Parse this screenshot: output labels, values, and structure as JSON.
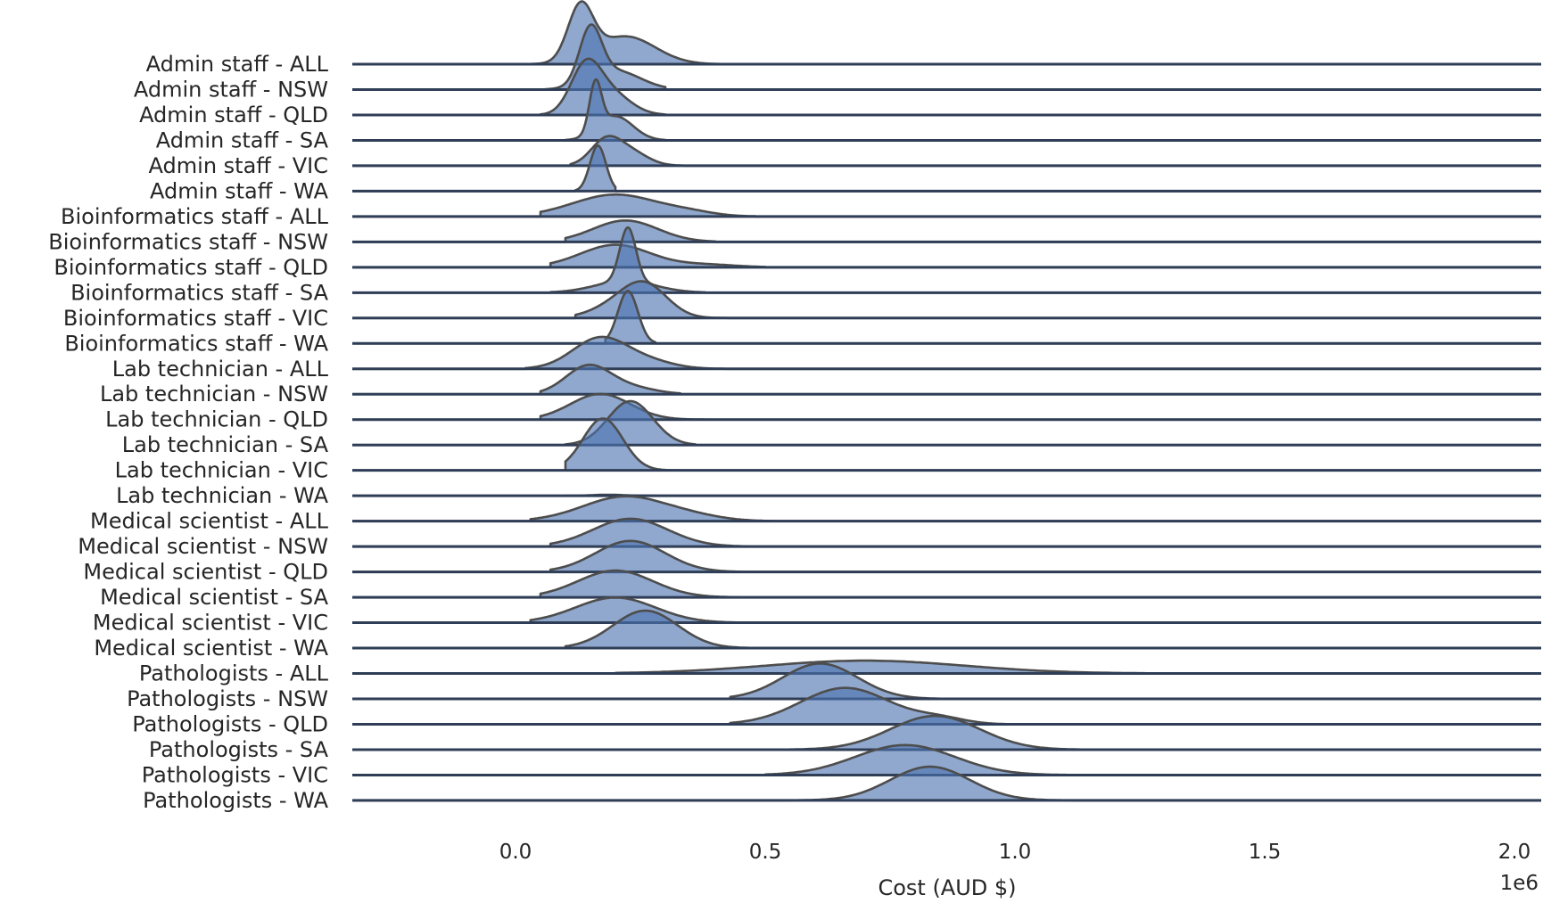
{
  "chart_data": {
    "type": "ridgeline",
    "xlabel": "Cost (AUD $)",
    "x_offset_label": "1e6",
    "x_ticks": [
      {
        "value": 0.0,
        "label": "0.0"
      },
      {
        "value": 0.5,
        "label": "0.5"
      },
      {
        "value": 1.0,
        "label": "1.0"
      },
      {
        "value": 1.5,
        "label": "1.5"
      },
      {
        "value": 2.0,
        "label": "2.0"
      }
    ],
    "xlim": [
      -0.33,
      2.05
    ],
    "x_scale": "1e6",
    "colors": {
      "fill": "#4c72b0",
      "outline": "#4d4d4d",
      "baseline": "#2f3e56"
    },
    "series": [
      {
        "name": "Admin staff - ALL",
        "peaks": [
          {
            "mu": 0.13,
            "sigma": 0.025,
            "h": 1.0
          },
          {
            "mu": 0.22,
            "sigma": 0.06,
            "h": 0.52
          }
        ],
        "start": -0.02,
        "end": 0.42
      },
      {
        "name": "Admin staff - NSW",
        "peaks": [
          {
            "mu": 0.15,
            "sigma": 0.022,
            "h": 1.0
          },
          {
            "mu": 0.2,
            "sigma": 0.05,
            "h": 0.35
          }
        ],
        "start": 0.06,
        "end": 0.3
      },
      {
        "name": "Admin staff - QLD",
        "peaks": [
          {
            "mu": 0.14,
            "sigma": 0.03,
            "h": 0.85
          },
          {
            "mu": 0.19,
            "sigma": 0.04,
            "h": 0.4
          }
        ],
        "start": 0.05,
        "end": 0.3
      },
      {
        "name": "Admin staff - SA",
        "peaks": [
          {
            "mu": 0.16,
            "sigma": 0.012,
            "h": 0.9
          },
          {
            "mu": 0.2,
            "sigma": 0.035,
            "h": 0.45
          }
        ],
        "start": 0.1,
        "end": 0.3
      },
      {
        "name": "Admin staff - VIC",
        "peaks": [
          {
            "mu": 0.18,
            "sigma": 0.03,
            "h": 0.45
          },
          {
            "mu": 0.23,
            "sigma": 0.035,
            "h": 0.25
          }
        ],
        "start": 0.11,
        "end": 0.34
      },
      {
        "name": "Admin staff - WA",
        "peaks": [
          {
            "mu": 0.165,
            "sigma": 0.016,
            "h": 0.85
          }
        ],
        "start": 0.12,
        "end": 0.2
      },
      {
        "name": "Bioinformatics staff - ALL",
        "peaks": [
          {
            "mu": 0.2,
            "sigma": 0.085,
            "h": 0.41
          },
          {
            "mu": 0.35,
            "sigma": 0.05,
            "h": 0.06
          }
        ],
        "start": 0.05,
        "end": 0.48
      },
      {
        "name": "Bioinformatics staff - NSW",
        "peaks": [
          {
            "mu": 0.22,
            "sigma": 0.065,
            "h": 0.4
          }
        ],
        "start": 0.1,
        "end": 0.4
      },
      {
        "name": "Bioinformatics staff - QLD",
        "peaks": [
          {
            "mu": 0.2,
            "sigma": 0.07,
            "h": 0.42
          },
          {
            "mu": 0.38,
            "sigma": 0.06,
            "h": 0.05
          }
        ],
        "start": 0.07,
        "end": 0.5
      },
      {
        "name": "Bioinformatics staff - SA",
        "peaks": [
          {
            "mu": 0.225,
            "sigma": 0.016,
            "h": 1.0
          },
          {
            "mu": 0.22,
            "sigma": 0.06,
            "h": 0.22
          }
        ],
        "start": 0.07,
        "end": 0.38
      },
      {
        "name": "Bioinformatics staff - VIC",
        "peaks": [
          {
            "mu": 0.26,
            "sigma": 0.045,
            "h": 0.58
          },
          {
            "mu": 0.2,
            "sigma": 0.05,
            "h": 0.2
          }
        ],
        "start": 0.12,
        "end": 0.44
      },
      {
        "name": "Bioinformatics staff - WA",
        "peaks": [
          {
            "mu": 0.225,
            "sigma": 0.02,
            "h": 0.98
          }
        ],
        "start": 0.18,
        "end": 0.28
      },
      {
        "name": "Lab technician - ALL",
        "peaks": [
          {
            "mu": 0.17,
            "sigma": 0.055,
            "h": 0.58
          },
          {
            "mu": 0.27,
            "sigma": 0.05,
            "h": 0.12
          }
        ],
        "start": 0.02,
        "end": 0.42
      },
      {
        "name": "Lab technician - NSW",
        "peaks": [
          {
            "mu": 0.145,
            "sigma": 0.045,
            "h": 0.52
          },
          {
            "mu": 0.23,
            "sigma": 0.05,
            "h": 0.12
          }
        ],
        "start": 0.05,
        "end": 0.33
      },
      {
        "name": "Lab technician - QLD",
        "peaks": [
          {
            "mu": 0.17,
            "sigma": 0.06,
            "h": 0.48
          }
        ],
        "start": 0.05,
        "end": 0.38
      },
      {
        "name": "Lab technician - SA",
        "peaks": [
          {
            "mu": 0.23,
            "sigma": 0.045,
            "h": 0.82
          }
        ],
        "start": 0.1,
        "end": 0.36
      },
      {
        "name": "Lab technician - VIC",
        "peaks": [
          {
            "mu": 0.175,
            "sigma": 0.04,
            "h": 0.97
          }
        ],
        "start": 0.1,
        "end": 0.33
      },
      {
        "name": "Lab technician - WA",
        "peaks": [
          {
            "mu": 0.185,
            "sigma": 0.03,
            "h": 0.02
          }
        ],
        "start": 0.1,
        "end": 0.28
      },
      {
        "name": "Medical scientist - ALL",
        "peaks": [
          {
            "mu": 0.22,
            "sigma": 0.085,
            "h": 0.46
          },
          {
            "mu": 0.36,
            "sigma": 0.06,
            "h": 0.06
          }
        ],
        "start": 0.03,
        "end": 0.55
      },
      {
        "name": "Medical scientist - NSW",
        "peaks": [
          {
            "mu": 0.23,
            "sigma": 0.075,
            "h": 0.52
          }
        ],
        "start": 0.07,
        "end": 0.5
      },
      {
        "name": "Medical scientist - QLD",
        "peaks": [
          {
            "mu": 0.23,
            "sigma": 0.07,
            "h": 0.58
          }
        ],
        "start": 0.07,
        "end": 0.5
      },
      {
        "name": "Medical scientist - SA",
        "peaks": [
          {
            "mu": 0.2,
            "sigma": 0.075,
            "h": 0.5
          }
        ],
        "start": 0.05,
        "end": 0.5
      },
      {
        "name": "Medical scientist - VIC",
        "peaks": [
          {
            "mu": 0.2,
            "sigma": 0.08,
            "h": 0.47
          }
        ],
        "start": 0.03,
        "end": 0.52
      },
      {
        "name": "Medical scientist - WA",
        "peaks": [
          {
            "mu": 0.26,
            "sigma": 0.065,
            "h": 0.7
          }
        ],
        "start": 0.1,
        "end": 0.5
      },
      {
        "name": "Pathologists - ALL",
        "peaks": [
          {
            "mu": 0.7,
            "sigma": 0.2,
            "h": 0.24
          }
        ],
        "start": 0.2,
        "end": 1.5
      },
      {
        "name": "Pathologists - NSW",
        "peaks": [
          {
            "mu": 0.61,
            "sigma": 0.075,
            "h": 0.66
          }
        ],
        "start": 0.43,
        "end": 0.85
      },
      {
        "name": "Pathologists - QLD",
        "peaks": [
          {
            "mu": 0.66,
            "sigma": 0.09,
            "h": 0.68
          },
          {
            "mu": 0.85,
            "sigma": 0.05,
            "h": 0.1
          }
        ],
        "start": 0.43,
        "end": 0.98
      },
      {
        "name": "Pathologists - SA",
        "peaks": [
          {
            "mu": 0.84,
            "sigma": 0.09,
            "h": 0.63
          }
        ],
        "start": 0.55,
        "end": 1.2
      },
      {
        "name": "Pathologists - VIC",
        "peaks": [
          {
            "mu": 0.78,
            "sigma": 0.1,
            "h": 0.56
          }
        ],
        "start": 0.5,
        "end": 1.15
      },
      {
        "name": "Pathologists - WA",
        "peaks": [
          {
            "mu": 0.83,
            "sigma": 0.08,
            "h": 0.63
          }
        ],
        "start": 0.55,
        "end": 1.15
      }
    ]
  }
}
